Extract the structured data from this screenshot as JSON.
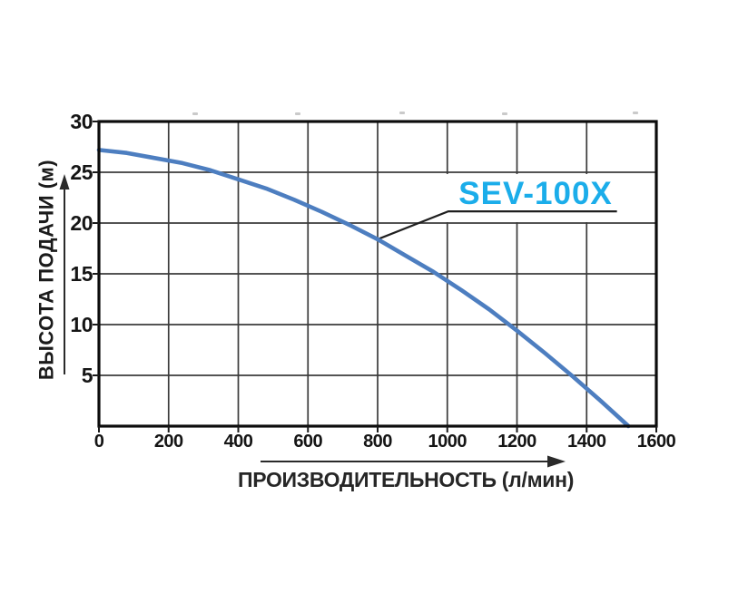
{
  "chart_data": {
    "type": "line",
    "title": "",
    "xlabel": "ПРОИЗВОДИТЕЛЬНОСТЬ (л/мин)",
    "ylabel": "ВЫСОТА ПОДАЧИ (м)",
    "xlim": [
      0,
      1600
    ],
    "ylim": [
      0,
      30
    ],
    "x_ticks": [
      0,
      200,
      400,
      600,
      800,
      1000,
      1200,
      1400,
      1600
    ],
    "y_ticks": [
      5,
      10,
      15,
      20,
      25,
      30
    ],
    "grid": true,
    "legend_position": "none",
    "series": [
      {
        "name": "SEV-100X",
        "color": "#4d7ec0",
        "points": [
          [
            0,
            27.2
          ],
          [
            80,
            26.9
          ],
          [
            160,
            26.4
          ],
          [
            240,
            25.9
          ],
          [
            320,
            25.2
          ],
          [
            400,
            24.3
          ],
          [
            480,
            23.4
          ],
          [
            560,
            22.3
          ],
          [
            640,
            21.1
          ],
          [
            720,
            19.8
          ],
          [
            800,
            18.4
          ],
          [
            880,
            16.8
          ],
          [
            960,
            15.2
          ],
          [
            1040,
            13.4
          ],
          [
            1120,
            11.5
          ],
          [
            1200,
            9.4
          ],
          [
            1280,
            7.2
          ],
          [
            1360,
            4.9
          ],
          [
            1440,
            2.5
          ],
          [
            1520,
            0
          ]
        ]
      }
    ],
    "annotation": {
      "label": "SEV-100X",
      "color": "#1badea",
      "leader_points": [
        [
          800,
          18.4
        ],
        [
          1003,
          21.15
        ],
        [
          1487,
          21.15
        ]
      ]
    }
  },
  "colors": {
    "background": "#ffffff",
    "grid": "#3b3b3b",
    "axis_border": "#0c0c0c",
    "tick": "#1a1a1a",
    "arrow": "#2a2a2a",
    "leader_line": "#1f1f1f"
  }
}
